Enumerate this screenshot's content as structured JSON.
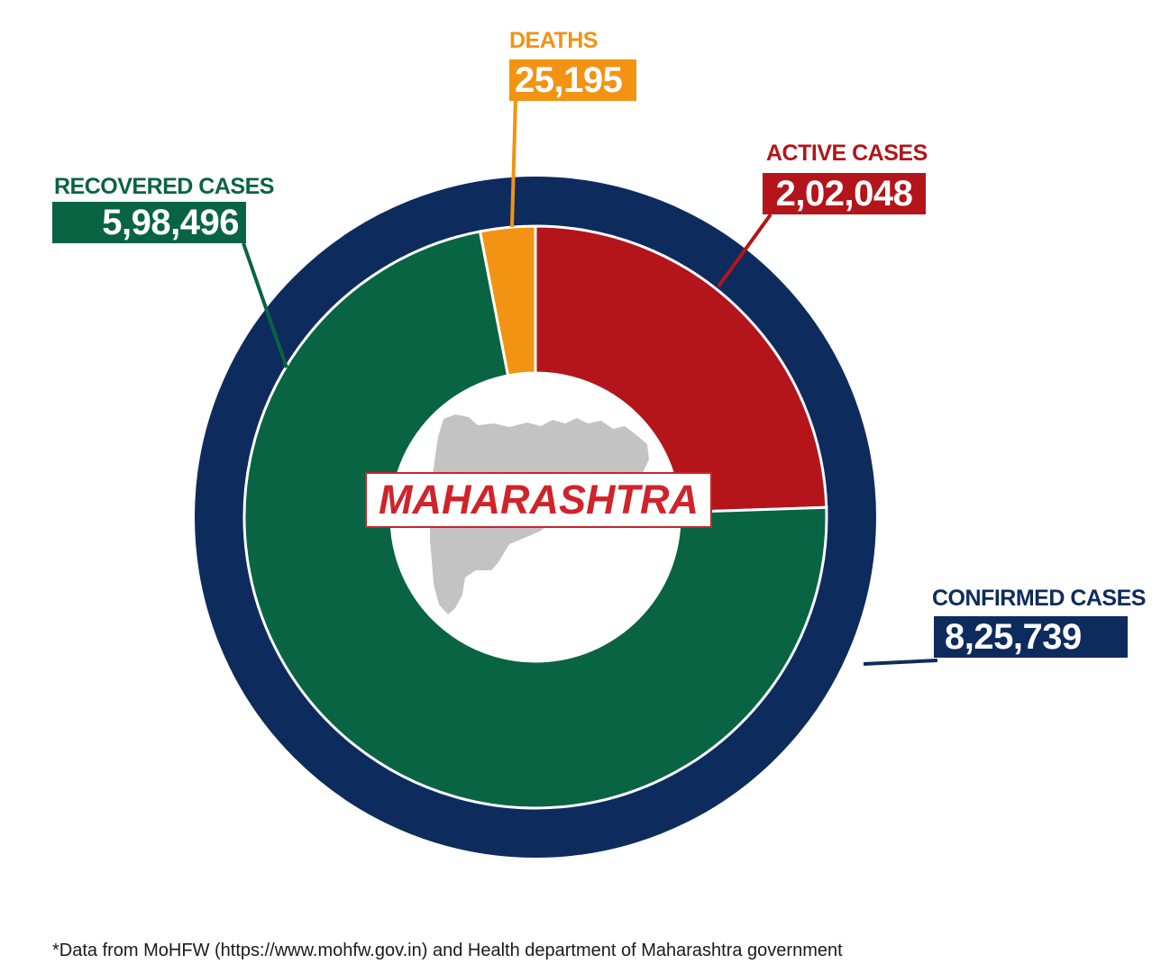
{
  "chart_data": {
    "type": "pie",
    "title": "MAHARASHTRA",
    "slices": [
      {
        "name": "DEATHS",
        "value": 25195,
        "value_text": "25,195",
        "color": "#f29313"
      },
      {
        "name": "ACTIVE CASES",
        "value": 202048,
        "value_text": "2,02,048",
        "color": "#b3151b"
      },
      {
        "name": "RECOVERED CASES",
        "value": 598496,
        "value_text": "5,98,496",
        "color": "#086442"
      }
    ],
    "total": {
      "name": "CONFIRMED CASES",
      "value": 825739,
      "value_text": "8,25,739",
      "color": "#0e2b5d"
    },
    "footnote": "*Data from MoHFW (https://www.mohfw.gov.in) and Health department of Maharashtra government"
  }
}
